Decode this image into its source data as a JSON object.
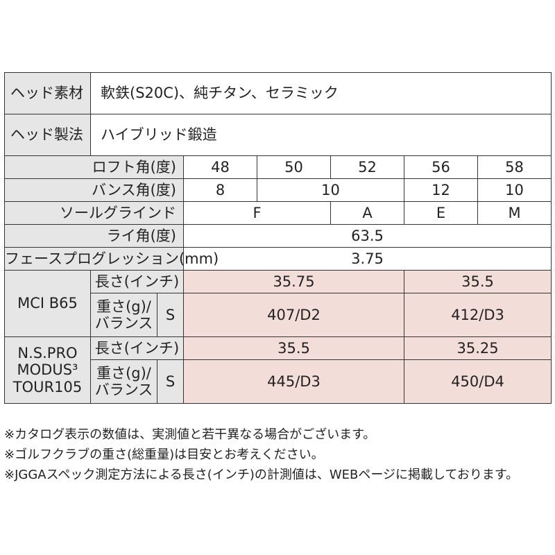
{
  "head_material": {
    "label": "ヘッド素材",
    "value": "軟鉄(S20C)、純チタン、セラミック"
  },
  "head_process": {
    "label": "ヘッド製法",
    "value": "ハイブリッド鍛造"
  },
  "loft": {
    "label": "ロフト角(度)",
    "values": [
      "48",
      "50",
      "52",
      "56",
      "58"
    ]
  },
  "bounce": {
    "label": "バンス角(度)",
    "values": [
      "8",
      "10",
      "12",
      "10"
    ]
  },
  "sole": {
    "label": "ソールグラインド",
    "values": [
      "F",
      "A",
      "E",
      "M"
    ]
  },
  "lie": {
    "label": "ライ角(度)",
    "value": "63.5"
  },
  "face_progression": {
    "label": "フェースプログレッション(mm)",
    "value": "3.75"
  },
  "shafts": [
    {
      "name": "MCI B65",
      "length_label": "長さ(インチ)",
      "weight_label_line1": "重さ(g)/",
      "weight_label_line2": "バランス",
      "flex": "S",
      "lengths": [
        "35.75",
        "35.5"
      ],
      "weights": [
        "407/D2",
        "412/D3"
      ]
    },
    {
      "name_line1": "N.S.PRO",
      "name_line2": "MODUS³",
      "name_line3": "TOUR105",
      "length_label": "長さ(インチ)",
      "weight_label_line1": "重さ(g)/",
      "weight_label_line2": "バランス",
      "flex": "S",
      "lengths": [
        "35.5",
        "35.25"
      ],
      "weights": [
        "445/D3",
        "450/D4"
      ]
    }
  ],
  "notes": [
    "※カタログ表示の数値は、実測値と若干異なる場合がございます。",
    "※ゴルフクラブの重さ(総重量)は目安とお考えください。",
    "※JGGAスペック測定方法による長さ(インチ)の計測値は、WEBページに掲載しております。"
  ],
  "colors": {
    "label_bg": "#e6e6e6",
    "shaft_value_bg": "#f2ddd8",
    "border": "#333333"
  }
}
